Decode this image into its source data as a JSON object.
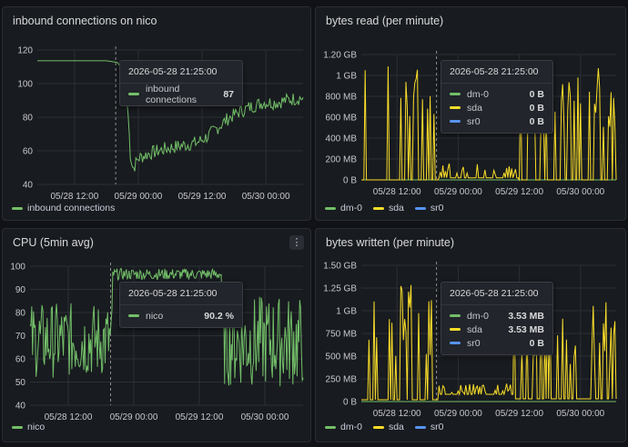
{
  "colors": {
    "green": "#73bf69",
    "yellow": "#fade2a",
    "blue": "#5794f2"
  },
  "panels": {
    "inbound": {
      "title": "inbound connections on nico",
      "legend": [
        {
          "label": "inbound connections",
          "color": "#73bf69"
        }
      ],
      "tooltip": {
        "time": "2026-05-28 21:25:00",
        "rows": [
          {
            "name": "inbound connections",
            "value": "87",
            "color": "#73bf69"
          }
        ]
      }
    },
    "bytes_read": {
      "title": "bytes read (per minute)",
      "legend": [
        {
          "label": "dm-0",
          "color": "#73bf69"
        },
        {
          "label": "sda",
          "color": "#fade2a"
        },
        {
          "label": "sr0",
          "color": "#5794f2"
        }
      ],
      "tooltip": {
        "time": "2026-05-28 21:25:00",
        "rows": [
          {
            "name": "dm-0",
            "value": "0 B",
            "color": "#73bf69"
          },
          {
            "name": "sda",
            "value": "0 B",
            "color": "#fade2a"
          },
          {
            "name": "sr0",
            "value": "0 B",
            "color": "#5794f2"
          }
        ]
      }
    },
    "cpu": {
      "title": "CPU (5min avg)",
      "menu_icon": "⋮",
      "legend": [
        {
          "label": "nico",
          "color": "#73bf69"
        }
      ],
      "tooltip": {
        "time": "2026-05-28 21:25:00",
        "rows": [
          {
            "name": "nico",
            "value": "90.2 %",
            "color": "#73bf69"
          }
        ]
      }
    },
    "bytes_written": {
      "title": "bytes written (per minute)",
      "legend": [
        {
          "label": "dm-0",
          "color": "#73bf69"
        },
        {
          "label": "sda",
          "color": "#fade2a"
        },
        {
          "label": "sr0",
          "color": "#5794f2"
        }
      ],
      "tooltip": {
        "time": "2026-05-28 21:25:00",
        "rows": [
          {
            "name": "dm-0",
            "value": "3.53 MB",
            "color": "#73bf69"
          },
          {
            "name": "sda",
            "value": "3.53 MB",
            "color": "#fade2a"
          },
          {
            "name": "sr0",
            "value": "0 B",
            "color": "#5794f2"
          }
        ]
      }
    }
  },
  "chart_data": [
    {
      "id": "inbound",
      "type": "line",
      "title": "inbound connections on nico",
      "x_ticks": [
        "05/28 12:00",
        "05/29 00:00",
        "05/29 12:00",
        "05/30 00:00"
      ],
      "y_ticks": [
        "40",
        "60",
        "80",
        "100",
        "120"
      ],
      "ylim": [
        35,
        122
      ],
      "grid": true,
      "legend_position": "bottom-left",
      "series": [
        {
          "name": "inbound connections",
          "color": "#73bf69",
          "points": [
            [
              0,
              115
            ],
            [
              0.06,
              115
            ],
            [
              0.13,
              115
            ],
            [
              0.2,
              115
            ],
            [
              0.26,
              115
            ],
            [
              0.3,
              114
            ],
            [
              0.32,
              110
            ],
            [
              0.34,
              85
            ],
            [
              0.35,
              55
            ],
            [
              0.36,
              45
            ],
            [
              0.38,
              52
            ],
            [
              0.42,
              55
            ],
            [
              0.48,
              58
            ],
            [
              0.54,
              60
            ],
            [
              0.6,
              62
            ],
            [
              0.64,
              66
            ],
            [
              0.68,
              72
            ],
            [
              0.72,
              78
            ],
            [
              0.76,
              82
            ],
            [
              0.8,
              85
            ],
            [
              0.85,
              88
            ],
            [
              0.9,
              88
            ],
            [
              0.95,
              90
            ],
            [
              1,
              91
            ]
          ]
        }
      ]
    },
    {
      "id": "bytes_read",
      "type": "line",
      "title": "bytes read (per minute)",
      "x_ticks": [
        "05/28 12:00",
        "05/29 00:00",
        "05/29 12:00",
        "05/30 00:00"
      ],
      "y_ticks": [
        "0 B",
        "200 MB",
        "400 MB",
        "600 MB",
        "800 MB",
        "1 GB",
        "1.20 GB"
      ],
      "ylim": [
        0,
        1.2
      ],
      "grid": true,
      "legend_position": "bottom-left",
      "series": [
        {
          "name": "dm-0",
          "color": "#73bf69",
          "values": "0"
        },
        {
          "name": "sda",
          "color": "#fade2a",
          "values": "spiky 0 to 1.1 GB"
        },
        {
          "name": "sr0",
          "color": "#5794f2",
          "values": "0"
        }
      ]
    },
    {
      "id": "cpu",
      "type": "line",
      "title": "CPU (5min avg)",
      "x_ticks": [
        "05/28 12:00",
        "05/29 00:00",
        "05/29 12:00",
        "05/30 00:00"
      ],
      "y_ticks": [
        "40",
        "50",
        "60",
        "70",
        "80",
        "90",
        "100"
      ],
      "ylim": [
        40,
        101
      ],
      "grid": true,
      "legend_position": "bottom-left",
      "series": [
        {
          "name": "nico",
          "color": "#73bf69",
          "bands": [
            [
              0,
              0.3,
              52,
              85
            ],
            [
              0.3,
              0.7,
              95,
              100
            ],
            [
              0.7,
              1,
              48,
              88
            ]
          ]
        }
      ]
    },
    {
      "id": "bytes_written",
      "type": "line",
      "title": "bytes written (per minute)",
      "x_ticks": [
        "05/28 12:00",
        "05/29 00:00",
        "05/29 12:00",
        "05/30 00:00"
      ],
      "y_ticks": [
        "0 B",
        "250 MB",
        "500 MB",
        "750 MB",
        "1 GB",
        "1.25 GB",
        "1.50 GB"
      ],
      "ylim": [
        0,
        1.5
      ],
      "grid": true,
      "legend_position": "bottom-left",
      "series": [
        {
          "name": "dm-0",
          "color": "#73bf69",
          "values": "spiky"
        },
        {
          "name": "sda",
          "color": "#fade2a",
          "values": "spiky 0 to 1.3 GB"
        },
        {
          "name": "sr0",
          "color": "#5794f2",
          "values": "0"
        }
      ]
    }
  ]
}
